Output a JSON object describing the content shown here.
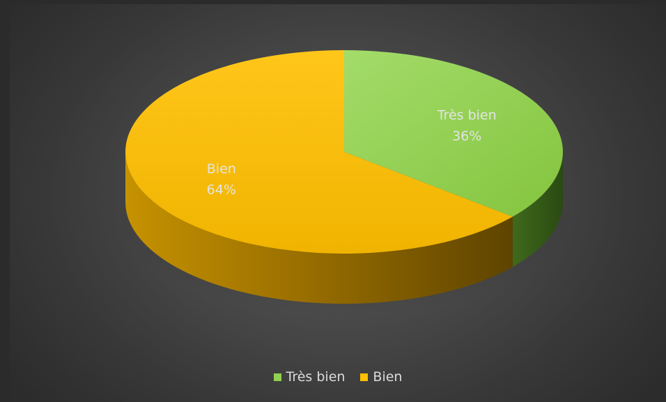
{
  "chart_data": {
    "type": "pie",
    "style": "3d",
    "categories": [
      "Très bien",
      "Bien"
    ],
    "values": [
      36,
      64
    ],
    "value_labels": [
      "36%",
      "64%"
    ],
    "colors": [
      "#92D050",
      "#FFC000"
    ],
    "legend_position": "bottom",
    "title": ""
  },
  "legend": {
    "items": [
      {
        "label": "Très bien",
        "color": "#92D050"
      },
      {
        "label": "Bien",
        "color": "#FFC000"
      }
    ]
  }
}
